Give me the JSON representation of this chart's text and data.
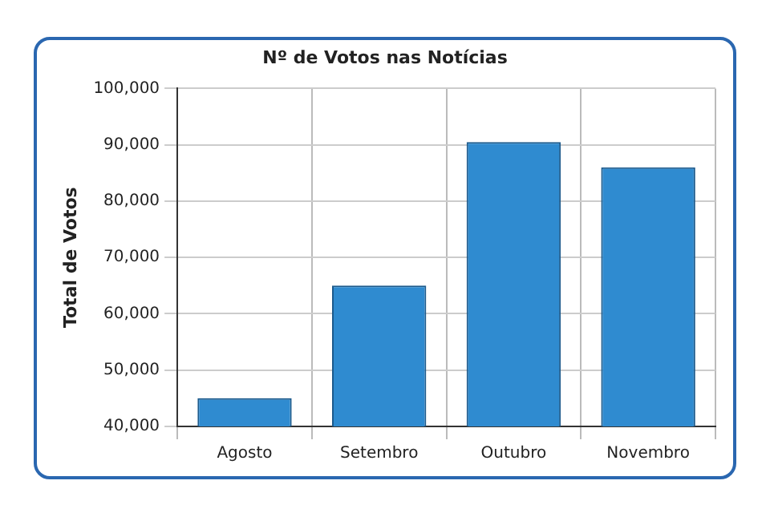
{
  "chart_data": {
    "type": "bar",
    "title": "Nº de Votos nas Notícias",
    "ylabel": "Total de Votos",
    "categories": [
      "Agosto",
      "Setembro",
      "Outubro",
      "Novembro"
    ],
    "values": [
      45000,
      65000,
      90500,
      86000
    ],
    "color": "#2f8bd0",
    "ylim": [
      40000,
      100000
    ],
    "yticks": [
      {
        "value": 40000,
        "label": "40,000"
      },
      {
        "value": 50000,
        "label": "50,000"
      },
      {
        "value": 60000,
        "label": "60,000"
      },
      {
        "value": 70000,
        "label": "70,000"
      },
      {
        "value": 80000,
        "label": "80,000"
      },
      {
        "value": 90000,
        "label": "90,000"
      },
      {
        "value": 100000,
        "label": "100,000"
      }
    ],
    "grid": true,
    "legend": false
  }
}
